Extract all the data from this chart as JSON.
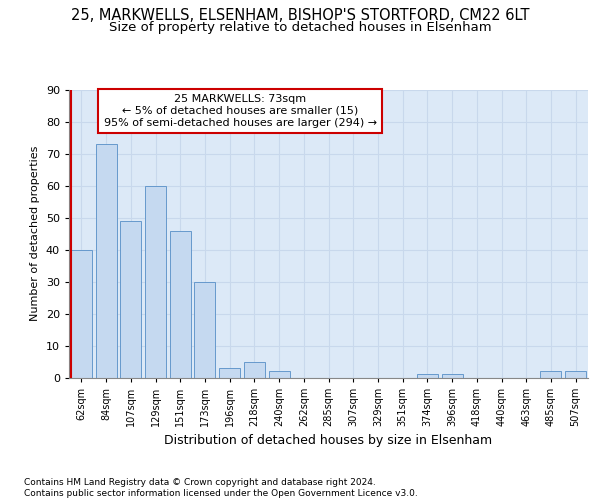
{
  "title1": "25, MARKWELLS, ELSENHAM, BISHOP'S STORTFORD, CM22 6LT",
  "title2": "Size of property relative to detached houses in Elsenham",
  "xlabel": "Distribution of detached houses by size in Elsenham",
  "ylabel": "Number of detached properties",
  "footnote": "Contains HM Land Registry data © Crown copyright and database right 2024.\nContains public sector information licensed under the Open Government Licence v3.0.",
  "categories": [
    "62sqm",
    "84sqm",
    "107sqm",
    "129sqm",
    "151sqm",
    "173sqm",
    "196sqm",
    "218sqm",
    "240sqm",
    "262sqm",
    "285sqm",
    "307sqm",
    "329sqm",
    "351sqm",
    "374sqm",
    "396sqm",
    "418sqm",
    "440sqm",
    "463sqm",
    "485sqm",
    "507sqm"
  ],
  "values": [
    40,
    73,
    49,
    60,
    46,
    30,
    3,
    5,
    2,
    0,
    0,
    0,
    0,
    0,
    1,
    1,
    0,
    0,
    0,
    2,
    2
  ],
  "bar_color": "#c5d9f0",
  "bar_edgecolor": "#6699cc",
  "highlight_color": "#cc0000",
  "annotation_text": "25 MARKWELLS: 73sqm\n← 5% of detached houses are smaller (15)\n95% of semi-detached houses are larger (294) →",
  "annotation_box_color": "#ffffff",
  "annotation_box_edgecolor": "#cc0000",
  "ylim": [
    0,
    90
  ],
  "yticks": [
    0,
    10,
    20,
    30,
    40,
    50,
    60,
    70,
    80,
    90
  ],
  "grid_color": "#c8d8ec",
  "bg_color": "#dce9f7",
  "title1_fontsize": 10.5,
  "title2_fontsize": 9.5,
  "ylabel_fontsize": 8,
  "xlabel_fontsize": 9
}
